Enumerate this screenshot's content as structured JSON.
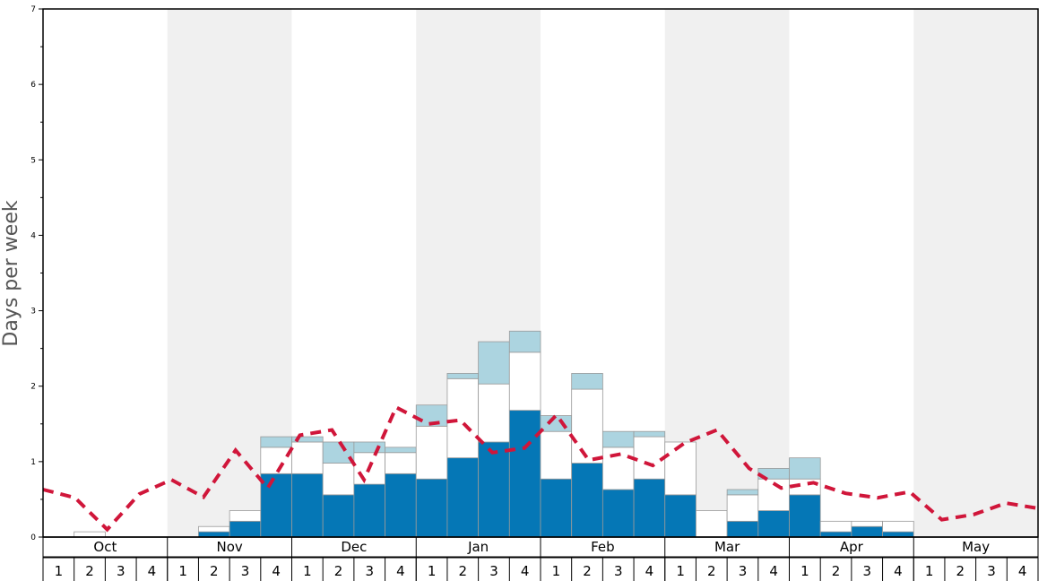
{
  "chart_data": {
    "type": "bar",
    "ylabel": "Days per week",
    "ylim": [
      0,
      7
    ],
    "yticks": [
      "0",
      "1",
      "2",
      "3",
      "4",
      "5",
      "6",
      "7"
    ],
    "months": [
      "Oct",
      "Nov",
      "Dec",
      "Jan",
      "Feb",
      "Mar",
      "Apr",
      "May"
    ],
    "weeks": [
      "1",
      "2",
      "3",
      "4"
    ],
    "colors": {
      "series_a": "#0577b6",
      "series_b": "#ffffff",
      "series_c": "#acd4e0",
      "dashed_line": "#d0163a",
      "shade": "#f0f0f0"
    },
    "series": [
      {
        "values": [
          0,
          0,
          0,
          0,
          0,
          0.07,
          0.21,
          0.84,
          0.84,
          0.56,
          0.7,
          0.84,
          0.77,
          1.05,
          1.26,
          1.68,
          0.77,
          0.98,
          0.63,
          0.77,
          0.56,
          0,
          0.21,
          0.35,
          0.56,
          0.07,
          0.14,
          0.07,
          0,
          0,
          0,
          0
        ]
      },
      {
        "values": [
          0,
          0.07,
          0,
          0,
          0,
          0.07,
          0.14,
          0.35,
          0.42,
          0.42,
          0.42,
          0.28,
          0.7,
          1.05,
          0.77,
          0.77,
          0.63,
          0.98,
          0.56,
          0.56,
          0.7,
          0.35,
          0.35,
          0.42,
          0.21,
          0.14,
          0.07,
          0.14,
          0,
          0,
          0,
          0
        ]
      },
      {
        "values": [
          0,
          0,
          0,
          0,
          0,
          0,
          0,
          0.14,
          0.07,
          0.28,
          0.14,
          0.07,
          0.28,
          0.07,
          0.56,
          0.28,
          0.21,
          0.21,
          0.21,
          0.07,
          0,
          0,
          0.07,
          0.14,
          0.28,
          0,
          0,
          0,
          0,
          0,
          0,
          0
        ]
      },
      {
        "line": true,
        "values": [
          0.63,
          0.52,
          0.1,
          0.57,
          0.76,
          0.53,
          1.15,
          0.65,
          1.35,
          1.42,
          0.76,
          1.72,
          1.5,
          1.55,
          1.12,
          1.18,
          1.62,
          1.02,
          1.1,
          0.95,
          1.25,
          1.42,
          0.91,
          0.65,
          0.72,
          0.58,
          0.52,
          0.6,
          0.23,
          0.3,
          0.45,
          0.38
        ]
      }
    ]
  }
}
